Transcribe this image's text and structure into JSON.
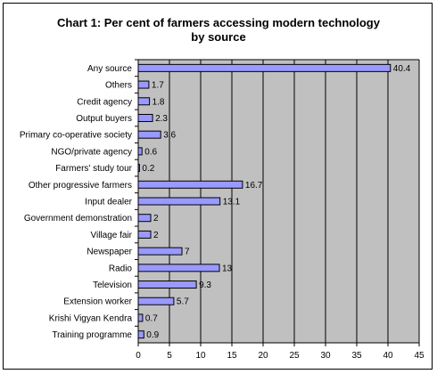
{
  "chart_data": {
    "type": "bar",
    "orientation": "horizontal",
    "title": "Chart 1: Per cent of farmers accessing modern technology",
    "subtitle": "by source",
    "categories": [
      "Any source",
      "Others",
      "Credit agency",
      "Output buyers",
      "Primary co-operative society",
      "NGO/private agency",
      "Farmers' study tour",
      "Other progressive farmers",
      "Input dealer",
      "Government demonstration",
      "Village fair",
      "Newspaper",
      "Radio",
      "Television",
      "Extension worker",
      "Krishi Vigyan Kendra",
      "Training programme"
    ],
    "values": [
      40.4,
      1.7,
      1.8,
      2.3,
      3.6,
      0.6,
      0.2,
      16.7,
      13.1,
      2,
      2,
      7,
      13,
      9.3,
      5.7,
      0.7,
      0.9
    ],
    "value_labels": [
      "40.4",
      "1.7",
      "1.8",
      "2.3",
      "3.6",
      "0.6",
      "0.2",
      "16.7",
      "13.1",
      "2",
      "2",
      "7",
      "13",
      "9.3",
      "5.7",
      "0.7",
      "0.9"
    ],
    "xlim": [
      0,
      45
    ],
    "xticks": [
      "0",
      "5",
      "10",
      "15",
      "20",
      "25",
      "30",
      "35",
      "40",
      "45"
    ],
    "grid": true,
    "colors": {
      "bar_fill": "#9999ff",
      "bar_stroke": "#000000",
      "plot_background": "#c0c0c0",
      "gridline": "#000000"
    }
  }
}
